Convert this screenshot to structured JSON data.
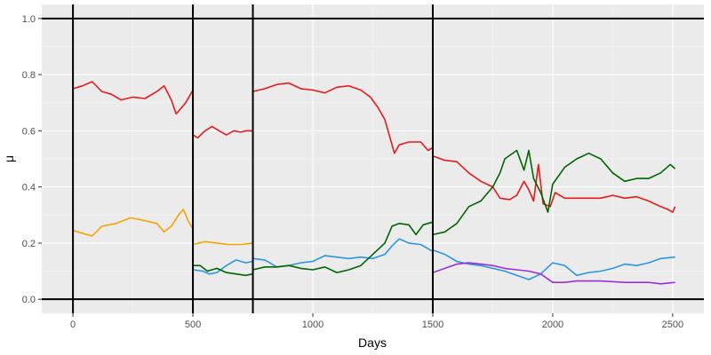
{
  "chart_data": {
    "type": "line",
    "xlabel": "Days",
    "ylabel": "μ",
    "xlim": [
      -130,
      2630
    ],
    "ylim": [
      -0.05,
      1.05
    ],
    "x_ticks": [
      0,
      500,
      1000,
      1500,
      2000,
      2500
    ],
    "x_tick_labels": [
      "0",
      "500",
      "1000",
      "1500",
      "2000",
      "2500"
    ],
    "y_ticks": [
      0.0,
      0.2,
      0.4,
      0.6,
      0.8,
      1.0
    ],
    "y_tick_labels": [
      "0.0",
      "0.2",
      "0.4",
      "0.6",
      "0.8",
      "1.0"
    ],
    "grid": true,
    "panel_background": "#ebebeb",
    "vertical_rules": [
      0,
      500,
      750,
      1500
    ],
    "horizontal_rules": [
      0,
      1
    ],
    "series": [
      {
        "color": "#e41a1c",
        "segment": [
          0,
          500
        ],
        "points": [
          [
            0,
            0.75
          ],
          [
            40,
            0.76
          ],
          [
            80,
            0.775
          ],
          [
            120,
            0.74
          ],
          [
            160,
            0.73
          ],
          [
            200,
            0.71
          ],
          [
            250,
            0.72
          ],
          [
            300,
            0.715
          ],
          [
            350,
            0.74
          ],
          [
            380,
            0.76
          ],
          [
            410,
            0.71
          ],
          [
            430,
            0.66
          ],
          [
            450,
            0.68
          ],
          [
            470,
            0.7
          ],
          [
            490,
            0.73
          ],
          [
            500,
            0.745
          ]
        ]
      },
      {
        "color": "#e41a1c",
        "segment": [
          500,
          750
        ],
        "points": [
          [
            500,
            0.585
          ],
          [
            520,
            0.575
          ],
          [
            550,
            0.6
          ],
          [
            580,
            0.615
          ],
          [
            610,
            0.6
          ],
          [
            640,
            0.585
          ],
          [
            670,
            0.6
          ],
          [
            700,
            0.595
          ],
          [
            720,
            0.6
          ],
          [
            750,
            0.6
          ]
        ]
      },
      {
        "color": "#e41a1c",
        "segment": [
          750,
          1500
        ],
        "points": [
          [
            750,
            0.74
          ],
          [
            800,
            0.75
          ],
          [
            850,
            0.765
          ],
          [
            900,
            0.77
          ],
          [
            950,
            0.75
          ],
          [
            1000,
            0.745
          ],
          [
            1050,
            0.735
          ],
          [
            1100,
            0.755
          ],
          [
            1150,
            0.76
          ],
          [
            1200,
            0.745
          ],
          [
            1240,
            0.72
          ],
          [
            1270,
            0.685
          ],
          [
            1300,
            0.64
          ],
          [
            1320,
            0.58
          ],
          [
            1340,
            0.52
          ],
          [
            1360,
            0.55
          ],
          [
            1400,
            0.56
          ],
          [
            1450,
            0.56
          ],
          [
            1480,
            0.53
          ],
          [
            1500,
            0.54
          ]
        ]
      },
      {
        "color": "#e41a1c",
        "segment": [
          1500,
          2510
        ],
        "points": [
          [
            1500,
            0.51
          ],
          [
            1550,
            0.495
          ],
          [
            1600,
            0.49
          ],
          [
            1650,
            0.45
          ],
          [
            1700,
            0.42
          ],
          [
            1750,
            0.4
          ],
          [
            1780,
            0.36
          ],
          [
            1820,
            0.355
          ],
          [
            1850,
            0.37
          ],
          [
            1880,
            0.42
          ],
          [
            1900,
            0.39
          ],
          [
            1920,
            0.35
          ],
          [
            1940,
            0.48
          ],
          [
            1960,
            0.34
          ],
          [
            1990,
            0.33
          ],
          [
            2010,
            0.38
          ],
          [
            2050,
            0.36
          ],
          [
            2100,
            0.36
          ],
          [
            2150,
            0.36
          ],
          [
            2200,
            0.36
          ],
          [
            2250,
            0.37
          ],
          [
            2300,
            0.36
          ],
          [
            2350,
            0.365
          ],
          [
            2400,
            0.35
          ],
          [
            2450,
            0.33
          ],
          [
            2480,
            0.32
          ],
          [
            2500,
            0.31
          ],
          [
            2510,
            0.33
          ]
        ]
      },
      {
        "color": "#f5a300",
        "segment": [
          0,
          500
        ],
        "points": [
          [
            0,
            0.245
          ],
          [
            40,
            0.235
          ],
          [
            80,
            0.225
          ],
          [
            120,
            0.26
          ],
          [
            180,
            0.27
          ],
          [
            240,
            0.29
          ],
          [
            300,
            0.28
          ],
          [
            350,
            0.27
          ],
          [
            380,
            0.24
          ],
          [
            410,
            0.26
          ],
          [
            440,
            0.3
          ],
          [
            460,
            0.32
          ],
          [
            480,
            0.28
          ],
          [
            500,
            0.25
          ]
        ]
      },
      {
        "color": "#f5a300",
        "segment": [
          500,
          750
        ],
        "points": [
          [
            500,
            0.195
          ],
          [
            550,
            0.205
          ],
          [
            600,
            0.2
          ],
          [
            650,
            0.195
          ],
          [
            700,
            0.195
          ],
          [
            750,
            0.2
          ]
        ]
      },
      {
        "color": "#2b95e3",
        "segment": [
          500,
          750
        ],
        "points": [
          [
            500,
            0.105
          ],
          [
            540,
            0.1
          ],
          [
            570,
            0.09
          ],
          [
            600,
            0.095
          ],
          [
            640,
            0.12
          ],
          [
            680,
            0.14
          ],
          [
            720,
            0.13
          ],
          [
            750,
            0.135
          ]
        ]
      },
      {
        "color": "#2b95e3",
        "segment": [
          750,
          1500
        ],
        "points": [
          [
            750,
            0.145
          ],
          [
            800,
            0.14
          ],
          [
            850,
            0.115
          ],
          [
            900,
            0.12
          ],
          [
            950,
            0.13
          ],
          [
            1000,
            0.135
          ],
          [
            1050,
            0.155
          ],
          [
            1100,
            0.15
          ],
          [
            1150,
            0.145
          ],
          [
            1200,
            0.15
          ],
          [
            1250,
            0.145
          ],
          [
            1300,
            0.16
          ],
          [
            1330,
            0.19
          ],
          [
            1360,
            0.215
          ],
          [
            1400,
            0.2
          ],
          [
            1450,
            0.195
          ],
          [
            1500,
            0.17
          ]
        ]
      },
      {
        "color": "#2b95e3",
        "segment": [
          1500,
          2510
        ],
        "points": [
          [
            1500,
            0.175
          ],
          [
            1550,
            0.16
          ],
          [
            1600,
            0.135
          ],
          [
            1650,
            0.125
          ],
          [
            1700,
            0.12
          ],
          [
            1750,
            0.11
          ],
          [
            1800,
            0.1
          ],
          [
            1850,
            0.085
          ],
          [
            1900,
            0.07
          ],
          [
            1950,
            0.09
          ],
          [
            2000,
            0.13
          ],
          [
            2050,
            0.12
          ],
          [
            2100,
            0.085
          ],
          [
            2150,
            0.095
          ],
          [
            2200,
            0.1
          ],
          [
            2250,
            0.11
          ],
          [
            2300,
            0.125
          ],
          [
            2350,
            0.12
          ],
          [
            2400,
            0.13
          ],
          [
            2450,
            0.145
          ],
          [
            2510,
            0.15
          ]
        ]
      },
      {
        "color": "#006400",
        "segment": [
          500,
          750
        ],
        "points": [
          [
            500,
            0.12
          ],
          [
            530,
            0.12
          ],
          [
            560,
            0.1
          ],
          [
            600,
            0.11
          ],
          [
            640,
            0.095
          ],
          [
            680,
            0.09
          ],
          [
            720,
            0.085
          ],
          [
            750,
            0.09
          ]
        ]
      },
      {
        "color": "#006400",
        "segment": [
          750,
          1500
        ],
        "points": [
          [
            750,
            0.105
          ],
          [
            800,
            0.115
          ],
          [
            850,
            0.115
          ],
          [
            900,
            0.12
          ],
          [
            950,
            0.11
          ],
          [
            1000,
            0.105
          ],
          [
            1050,
            0.115
          ],
          [
            1100,
            0.095
          ],
          [
            1150,
            0.105
          ],
          [
            1200,
            0.12
          ],
          [
            1250,
            0.16
          ],
          [
            1300,
            0.2
          ],
          [
            1330,
            0.26
          ],
          [
            1360,
            0.27
          ],
          [
            1400,
            0.265
          ],
          [
            1430,
            0.23
          ],
          [
            1460,
            0.265
          ],
          [
            1500,
            0.275
          ]
        ]
      },
      {
        "color": "#006400",
        "segment": [
          1500,
          2510
        ],
        "points": [
          [
            1500,
            0.23
          ],
          [
            1550,
            0.24
          ],
          [
            1600,
            0.27
          ],
          [
            1650,
            0.33
          ],
          [
            1700,
            0.35
          ],
          [
            1750,
            0.4
          ],
          [
            1780,
            0.45
          ],
          [
            1800,
            0.5
          ],
          [
            1850,
            0.53
          ],
          [
            1880,
            0.46
          ],
          [
            1900,
            0.53
          ],
          [
            1920,
            0.43
          ],
          [
            1950,
            0.38
          ],
          [
            1980,
            0.31
          ],
          [
            2000,
            0.41
          ],
          [
            2050,
            0.47
          ],
          [
            2100,
            0.5
          ],
          [
            2150,
            0.52
          ],
          [
            2200,
            0.5
          ],
          [
            2250,
            0.45
          ],
          [
            2300,
            0.42
          ],
          [
            2350,
            0.43
          ],
          [
            2400,
            0.43
          ],
          [
            2450,
            0.45
          ],
          [
            2490,
            0.48
          ],
          [
            2510,
            0.465
          ]
        ]
      },
      {
        "color": "#9b30d9",
        "segment": [
          1500,
          2510
        ],
        "points": [
          [
            1500,
            0.095
          ],
          [
            1550,
            0.11
          ],
          [
            1600,
            0.125
          ],
          [
            1650,
            0.13
          ],
          [
            1700,
            0.125
          ],
          [
            1750,
            0.12
          ],
          [
            1800,
            0.11
          ],
          [
            1850,
            0.105
          ],
          [
            1900,
            0.1
          ],
          [
            1950,
            0.09
          ],
          [
            2000,
            0.06
          ],
          [
            2050,
            0.06
          ],
          [
            2100,
            0.065
          ],
          [
            2150,
            0.065
          ],
          [
            2200,
            0.065
          ],
          [
            2300,
            0.06
          ],
          [
            2400,
            0.06
          ],
          [
            2450,
            0.055
          ],
          [
            2510,
            0.06
          ]
        ]
      }
    ]
  }
}
